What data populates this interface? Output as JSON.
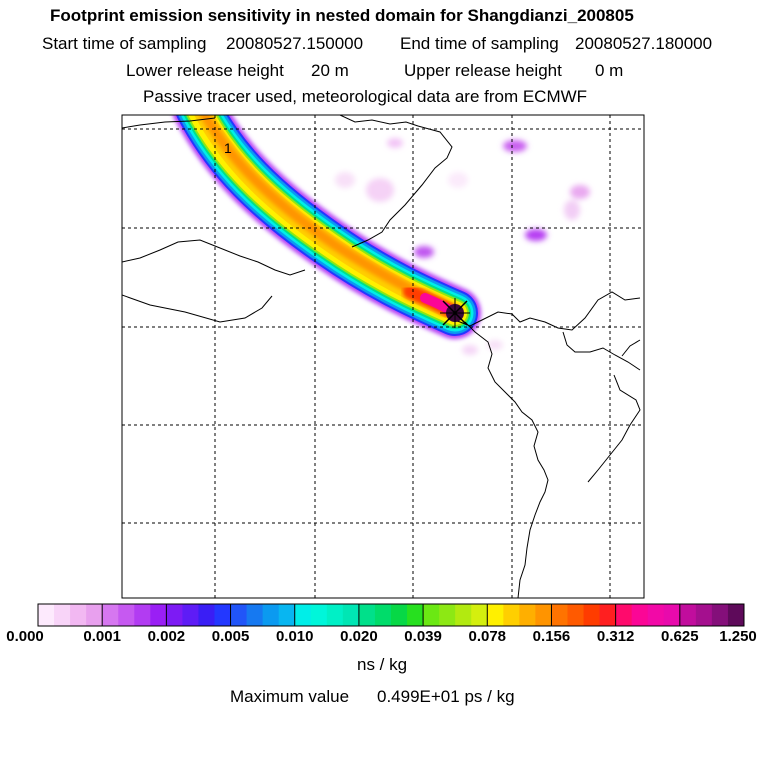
{
  "header": {
    "title": "Footprint emission sensitivity in nested domain for Shangdianzi_200805",
    "start_label": "Start time of sampling",
    "start_value": "20080527.150000",
    "end_label": "End time of sampling",
    "end_value": "20080527.180000",
    "lower_label": "Lower release height",
    "lower_value": "20 m",
    "upper_label": "Upper release height",
    "upper_value": "0 m",
    "note": "Passive tracer used, meteorological data are from ECMWF"
  },
  "map": {
    "plume_label": "1",
    "station_marker": "release-point-marker"
  },
  "colorbar": {
    "tick_labels": [
      "0.000",
      "0.001",
      "0.002",
      "0.005",
      "0.010",
      "0.020",
      "0.039",
      "0.078",
      "0.156",
      "0.312",
      "0.625",
      "1.250"
    ],
    "colors": [
      "#fdeafd",
      "#f8d4f8",
      "#f2b8f2",
      "#e8a0ee",
      "#d677f0",
      "#c659f1",
      "#b23cf2",
      "#9a1ff5",
      "#7d1bf4",
      "#5e1cf6",
      "#3a1ef5",
      "#2338ff",
      "#2155f8",
      "#1679f1",
      "#0b9af0",
      "#08b6f1",
      "#00eee8",
      "#00f6da",
      "#00f0c6",
      "#00e6b4",
      "#00e08a",
      "#00dc6a",
      "#07d846",
      "#27e01f",
      "#6be813",
      "#8de814",
      "#b2ea10",
      "#d4ef0e",
      "#fff000",
      "#ffcf00",
      "#ffaf00",
      "#ff9400",
      "#ff7300",
      "#ff5a00",
      "#ff3c00",
      "#ff1f20",
      "#ff0a6c",
      "#fb0696",
      "#f209a7",
      "#e80aac",
      "#c10d9d",
      "#a40f8e",
      "#840f7a",
      "#5e0a5a"
    ],
    "unit": "ns / kg",
    "max_label": "Maximum value",
    "max_value": "0.499E+01 ps / kg"
  }
}
